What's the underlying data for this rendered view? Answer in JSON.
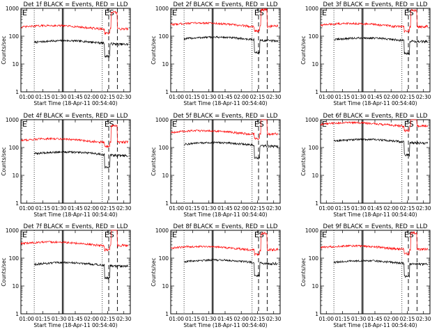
{
  "figure": {
    "x_tick_labels": [
      "01:00",
      "01:15",
      "01:30",
      "01:45",
      "02:00",
      "02:15",
      "02:30"
    ],
    "y_tick_labels": [
      "1",
      "10",
      "100",
      "1000"
    ],
    "ylabel": "Counts/sec",
    "xlabel": "Start Time (18-Apr-11 00:54:40)",
    "event_color": "#000000",
    "lld_color": "#ff0000"
  },
  "chart_data": [
    {
      "type": "line",
      "title": "Det 1f BLACK = Events, RED = LLD",
      "markers": [
        "E",
        "ES"
      ],
      "ylim": [
        1,
        1000
      ],
      "y_scale": "log",
      "x_range": [
        "00:54:40",
        "02:36:00"
      ],
      "series": [
        {
          "name": "Events",
          "level": 60,
          "start": "01:07"
        },
        {
          "name": "LLD",
          "level": 210,
          "start": "00:54:40"
        }
      ]
    },
    {
      "type": "line",
      "title": "Det 2f BLACK = Events, RED = LLD",
      "markers": [
        "E",
        "ES"
      ],
      "ylim": [
        1,
        1000
      ],
      "y_scale": "log",
      "x_range": [
        "00:54:40",
        "02:36:00"
      ],
      "series": [
        {
          "name": "Events",
          "level": 80,
          "start": "01:07"
        },
        {
          "name": "LLD",
          "level": 260,
          "start": "00:54:40"
        }
      ]
    },
    {
      "type": "line",
      "title": "Det 3f BLACK = Events, RED = LLD",
      "markers": [
        "E",
        "ES"
      ],
      "ylim": [
        1,
        1000
      ],
      "y_scale": "log",
      "x_range": [
        "00:54:40",
        "02:36:00"
      ],
      "series": [
        {
          "name": "Events",
          "level": 75,
          "start": "01:07"
        },
        {
          "name": "LLD",
          "level": 250,
          "start": "00:54:40"
        }
      ]
    },
    {
      "type": "line",
      "title": "Det 4f BLACK = Events, RED = LLD",
      "markers": [
        "E",
        "ES"
      ],
      "ylim": [
        1,
        1000
      ],
      "y_scale": "log",
      "x_range": [
        "00:54:40",
        "02:36:00"
      ],
      "series": [
        {
          "name": "Events",
          "level": 60,
          "start": "01:07"
        },
        {
          "name": "LLD",
          "level": 180,
          "start": "00:54:40"
        }
      ]
    },
    {
      "type": "line",
      "title": "Det 5f BLACK = Events, RED = LLD",
      "markers": [
        "E",
        "ES"
      ],
      "ylim": [
        1,
        1000
      ],
      "y_scale": "log",
      "x_range": [
        "00:54:40",
        "02:36:00"
      ],
      "series": [
        {
          "name": "Events",
          "level": 130,
          "start": "01:07"
        },
        {
          "name": "LLD",
          "level": 350,
          "start": "00:54:40"
        }
      ]
    },
    {
      "type": "line",
      "title": "Det 6f BLACK = Events, RED = LLD",
      "markers": [
        "E",
        "ES"
      ],
      "ylim": [
        1,
        1000
      ],
      "y_scale": "log",
      "x_range": [
        "00:54:40",
        "02:36:00"
      ],
      "series": [
        {
          "name": "Events",
          "level": 170,
          "start": "01:07"
        },
        {
          "name": "LLD",
          "level": 680,
          "start": "00:54:40"
        }
      ]
    },
    {
      "type": "line",
      "title": "Det 7f BLACK = Events, RED = LLD",
      "markers": [
        "E",
        "ES"
      ],
      "ylim": [
        1,
        1000
      ],
      "y_scale": "log",
      "x_range": [
        "00:54:40",
        "02:36:00"
      ],
      "series": [
        {
          "name": "Events",
          "level": 60,
          "start": "01:07"
        },
        {
          "name": "LLD",
          "level": 330,
          "start": "00:54:40"
        }
      ]
    },
    {
      "type": "line",
      "title": "Det 8f BLACK = Events, RED = LLD",
      "markers": [
        "E",
        "ES"
      ],
      "ylim": [
        1,
        1000
      ],
      "y_scale": "log",
      "x_range": [
        "00:54:40",
        "02:36:00"
      ],
      "series": [
        {
          "name": "Events",
          "level": 75,
          "start": "01:07"
        },
        {
          "name": "LLD",
          "level": 230,
          "start": "00:54:40"
        }
      ]
    },
    {
      "type": "line",
      "title": "Det 9f BLACK = Events, RED = LLD",
      "markers": [
        "E",
        "ES"
      ],
      "ylim": [
        1,
        1000
      ],
      "y_scale": "log",
      "x_range": [
        "00:54:40",
        "02:36:00"
      ],
      "series": [
        {
          "name": "Events",
          "level": 70,
          "start": "01:07"
        },
        {
          "name": "LLD",
          "level": 240,
          "start": "00:54:40"
        }
      ]
    }
  ]
}
